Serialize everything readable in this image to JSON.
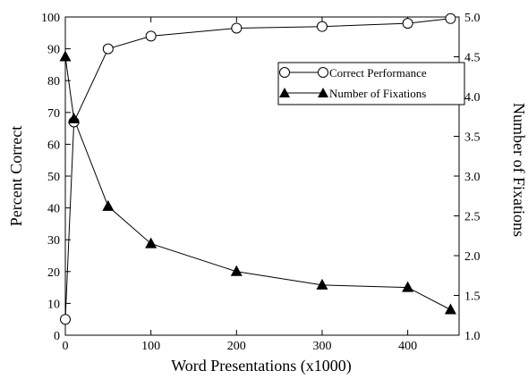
{
  "chart_data": {
    "type": "line",
    "xlabel": "Word Presentations (x1000)",
    "ylabel_left": "Percent Correct",
    "ylabel_right": "Number of Fixations",
    "xlim": [
      0,
      460
    ],
    "ylim_left": [
      0,
      100
    ],
    "ylim_right": [
      1.0,
      5.0
    ],
    "x_ticks": [
      0,
      100,
      200,
      300,
      400
    ],
    "y_left_ticks": [
      0,
      10,
      20,
      30,
      40,
      50,
      60,
      70,
      80,
      90,
      100
    ],
    "y_right_ticks": [
      "1.0",
      "1.5",
      "2.0",
      "2.5",
      "3.0",
      "3.5",
      "4.0",
      "4.5",
      "5.0"
    ],
    "grid": false,
    "legend_position": "top-right",
    "series": [
      {
        "name": "Correct Performance",
        "axis": "left",
        "marker": "open-circle",
        "x": [
          0,
          10,
          50,
          100,
          200,
          300,
          400,
          450
        ],
        "y": [
          5,
          67,
          90,
          94,
          96.5,
          97,
          98,
          99.5
        ]
      },
      {
        "name": "Number of Fixations",
        "axis": "right",
        "marker": "filled-triangle",
        "x": [
          0,
          10,
          50,
          100,
          200,
          300,
          400,
          450
        ],
        "y": [
          4.5,
          3.72,
          2.62,
          2.15,
          1.8,
          1.63,
          1.6,
          1.32
        ]
      }
    ]
  }
}
